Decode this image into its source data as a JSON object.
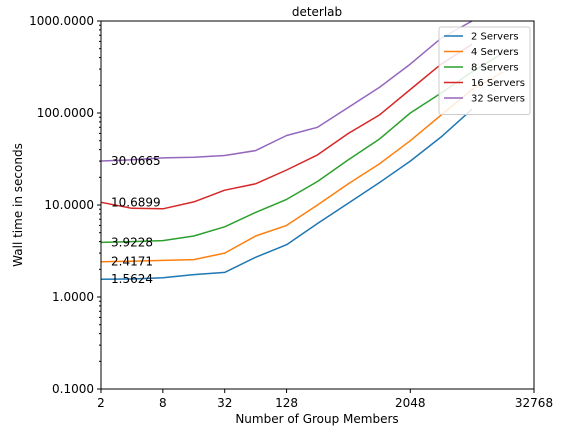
{
  "chart_data": {
    "type": "line",
    "title": "deterlab",
    "xlabel": "Number of Group Members",
    "ylabel": "Wall time in seconds",
    "x_scale": "log2",
    "y_scale": "log10",
    "xlim": [
      2,
      32768
    ],
    "ylim": [
      0.1,
      1000
    ],
    "x_ticks": [
      2,
      8,
      32,
      128,
      2048,
      32768
    ],
    "x_tick_labels": [
      "2",
      "8",
      "32",
      "128",
      "2048",
      "32768"
    ],
    "y_ticks": [
      0.1,
      1,
      10,
      100,
      1000
    ],
    "y_tick_labels": [
      "0.1000",
      "1.0000",
      "10.0000",
      "100.0000",
      "1000.0000"
    ],
    "grid": false,
    "legend_position": "top-right",
    "series": [
      {
        "name": "2 Servers",
        "color": "#1f77b4",
        "x": [
          2,
          4,
          8,
          16,
          32,
          64,
          128,
          256,
          512,
          1024,
          2048,
          4096,
          8192
        ],
        "y": [
          1.5624,
          1.57,
          1.62,
          1.75,
          1.85,
          2.7,
          3.7,
          6.3,
          10.5,
          17.5,
          30,
          55,
          110
        ]
      },
      {
        "name": "4 Servers",
        "color": "#ff7f0e",
        "x": [
          2,
          4,
          8,
          16,
          32,
          64,
          128,
          256,
          512,
          1024,
          2048,
          4096,
          8192,
          16384
        ],
        "y": [
          2.4171,
          2.45,
          2.5,
          2.55,
          3.0,
          4.6,
          6.0,
          10,
          17,
          28,
          50,
          95,
          180,
          280
        ]
      },
      {
        "name": "8 Servers",
        "color": "#2ca02c",
        "x": [
          2,
          4,
          8,
          16,
          32,
          64,
          128,
          256,
          512,
          1024,
          2048,
          4096,
          8192,
          16384
        ],
        "y": [
          3.9228,
          4.0,
          4.1,
          4.6,
          5.8,
          8.3,
          11.5,
          18,
          31,
          52,
          100,
          165,
          280,
          450
        ]
      },
      {
        "name": "16 Servers",
        "color": "#d62728",
        "x": [
          2,
          4,
          8,
          16,
          32,
          64,
          128,
          256,
          512,
          1024,
          2048,
          4096,
          8192
        ],
        "y": [
          10.6899,
          9.2,
          9.1,
          10.8,
          14.5,
          17,
          24,
          35,
          60,
          95,
          180,
          340,
          560
        ]
      },
      {
        "name": "32 Servers",
        "color": "#9467bd",
        "x": [
          2,
          4,
          8,
          16,
          32,
          64,
          128,
          256,
          512,
          1024,
          2048,
          4096,
          8192
        ],
        "y": [
          30.0665,
          31,
          32.5,
          33,
          34.5,
          39,
          57,
          70,
          115,
          190,
          340,
          650,
          1000
        ]
      }
    ],
    "annotations": [
      {
        "text": "30.0665",
        "x": 2,
        "y": 30.0665
      },
      {
        "text": "10.6899",
        "x": 2,
        "y": 10.6899
      },
      {
        "text": "3.9228",
        "x": 2,
        "y": 3.9228
      },
      {
        "text": "2.4171",
        "x": 2,
        "y": 2.4171
      },
      {
        "text": "1.5624",
        "x": 2,
        "y": 1.5624
      }
    ]
  }
}
